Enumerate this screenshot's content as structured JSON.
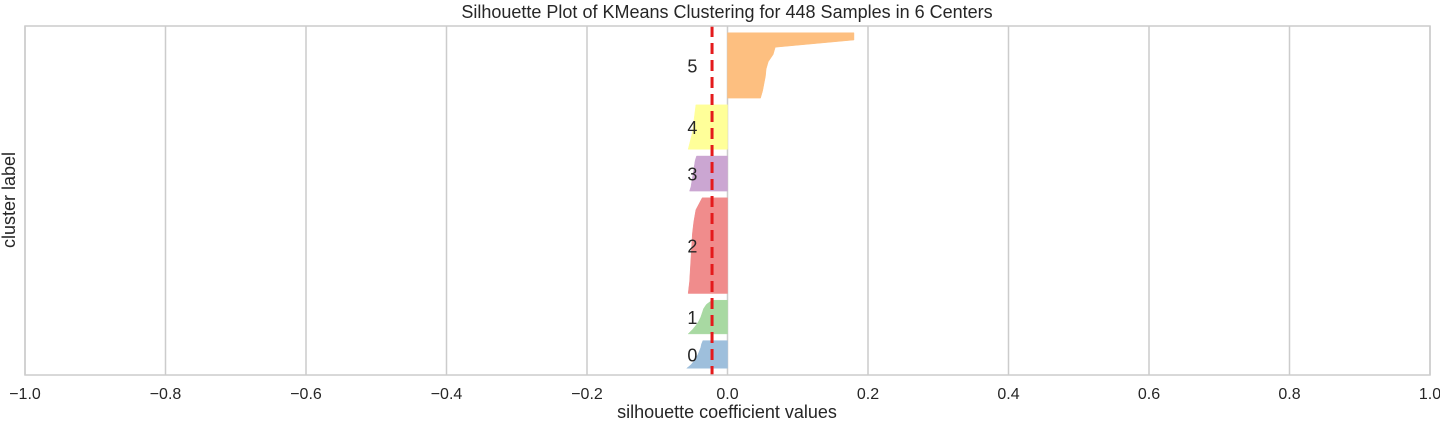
{
  "chart_data": {
    "type": "area",
    "title": "Silhouette Plot of KMeans Clustering for 448 Samples in 6 Centers",
    "xlabel": "silhouette coefficient values",
    "ylabel": "cluster label",
    "xlim": [
      -1.0,
      1.0
    ],
    "xticks": [
      -1.0,
      -0.8,
      -0.6,
      -0.4,
      -0.2,
      0.0,
      0.2,
      0.4,
      0.6,
      0.8,
      1.0
    ],
    "xtick_labels": [
      "−1.0",
      "−0.8",
      "−0.6",
      "−0.4",
      "−0.2",
      "0.0",
      "0.2",
      "0.4",
      "0.6",
      "0.8",
      "1.0"
    ],
    "grid": true,
    "average_silhouette": -0.022,
    "average_line_color": "#e41a1c",
    "clusters": [
      {
        "label": "0",
        "size": 41,
        "color": "#9ebfdc",
        "sorted_values": [
          -0.058,
          -0.052,
          -0.048,
          -0.045,
          -0.042,
          -0.04,
          -0.038,
          -0.037,
          -0.035
        ]
      },
      {
        "label": "1",
        "size": 50,
        "color": "#a8d9a2",
        "sorted_values": [
          -0.056,
          -0.05,
          -0.045,
          -0.041,
          -0.038,
          -0.036,
          -0.034,
          -0.03,
          -0.022
        ]
      },
      {
        "label": "2",
        "size": 142,
        "color": "#f08c8c",
        "sorted_values": [
          -0.056,
          -0.054,
          -0.053,
          -0.052,
          -0.051,
          -0.05,
          -0.048,
          -0.045,
          -0.036
        ]
      },
      {
        "label": "3",
        "size": 52,
        "color": "#cba6d2",
        "sorted_values": [
          -0.054,
          -0.052,
          -0.051,
          -0.05,
          -0.049,
          -0.048,
          -0.047,
          -0.046,
          -0.044
        ]
      },
      {
        "label": "4",
        "size": 66,
        "color": "#ffff99",
        "sorted_values": [
          -0.056,
          -0.054,
          -0.052,
          -0.05,
          -0.049,
          -0.048,
          -0.047,
          -0.046,
          -0.045
        ]
      },
      {
        "label": "5",
        "size": 97,
        "color": "#fdbf80",
        "sorted_values": [
          0.047,
          0.05,
          0.052,
          0.054,
          0.055,
          0.058,
          0.065,
          0.068,
          0.18,
          0.18
        ]
      }
    ]
  }
}
